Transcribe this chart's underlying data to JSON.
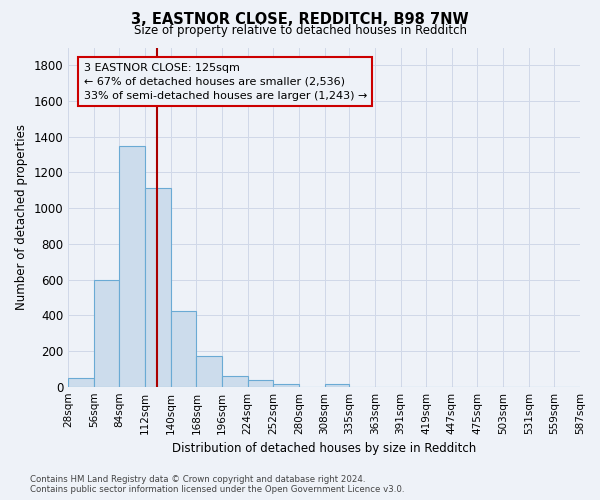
{
  "title1": "3, EASTNOR CLOSE, REDDITCH, B98 7NW",
  "title2": "Size of property relative to detached houses in Redditch",
  "xlabel": "Distribution of detached houses by size in Redditch",
  "ylabel": "Number of detached properties",
  "footnote1": "Contains HM Land Registry data © Crown copyright and database right 2024.",
  "footnote2": "Contains public sector information licensed under the Open Government Licence v3.0.",
  "bin_edges": [
    28,
    56,
    84,
    112,
    140,
    168,
    196,
    224,
    252,
    280,
    308,
    335,
    363,
    391,
    419,
    447,
    475,
    503,
    531,
    559,
    587
  ],
  "bar_heights": [
    50,
    595,
    1350,
    1115,
    425,
    170,
    60,
    38,
    15,
    0,
    15,
    0,
    0,
    0,
    0,
    0,
    0,
    0,
    0,
    0
  ],
  "bar_color": "#ccdcec",
  "bar_edge_color": "#6aaad4",
  "grid_color": "#d0d8e8",
  "vline_x": 125,
  "vline_color": "#aa0000",
  "annotation_line1": "3 EASTNOR CLOSE: 125sqm",
  "annotation_line2": "← 67% of detached houses are smaller (2,536)",
  "annotation_line3": "33% of semi-detached houses are larger (1,243) →",
  "annotation_box_color": "#cc0000",
  "ylim": [
    0,
    1900
  ],
  "yticks": [
    0,
    200,
    400,
    600,
    800,
    1000,
    1200,
    1400,
    1600,
    1800
  ],
  "bg_color": "#eef2f8",
  "fig_width": 6.0,
  "fig_height": 5.0,
  "dpi": 100
}
